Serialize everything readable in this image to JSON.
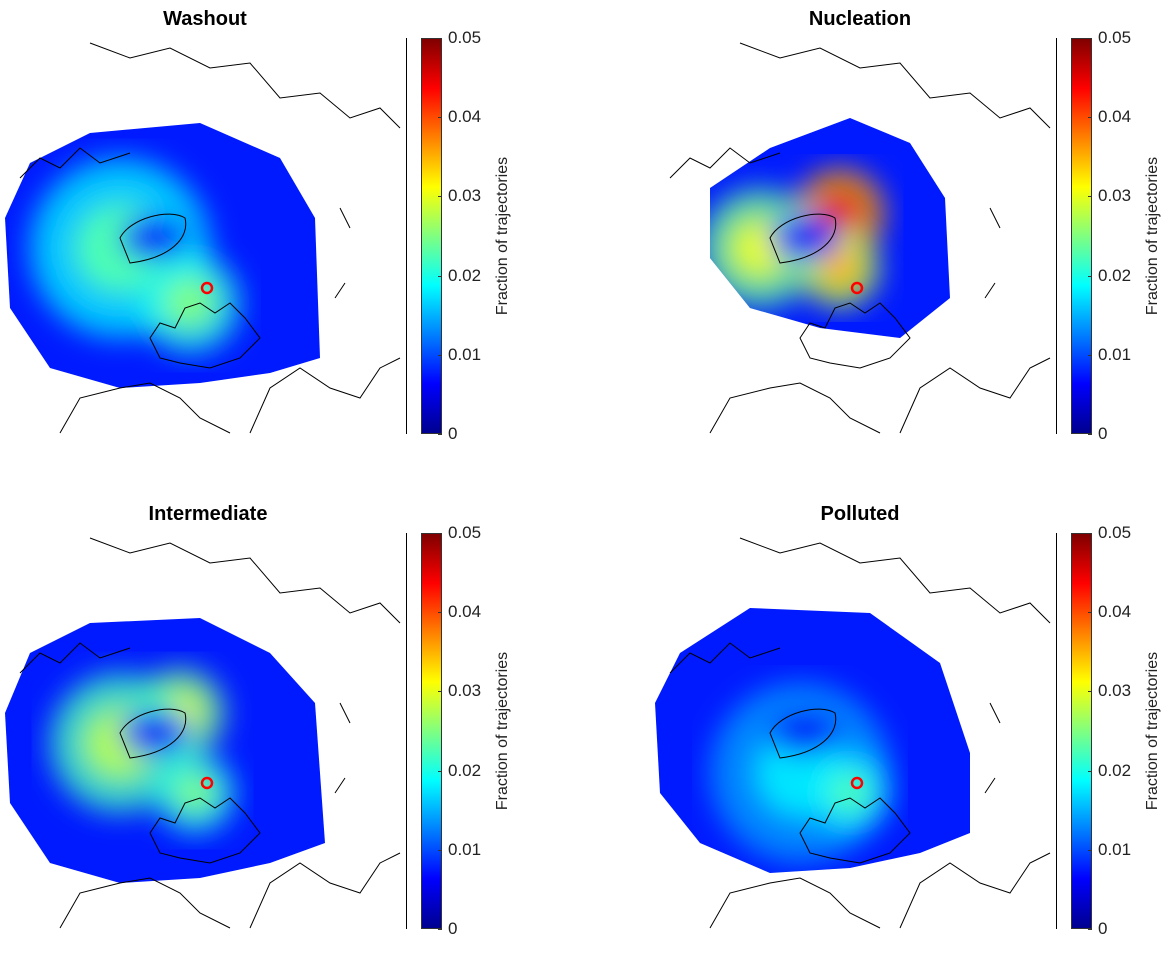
{
  "chart_data": {
    "type": "heatmap",
    "colormap": "jet",
    "colorbar": {
      "label": "Fraction of trajectories",
      "range": [
        0,
        0.05
      ],
      "ticks": [
        "0",
        "0.01",
        "0.02",
        "0.03",
        "0.04",
        "0.05"
      ],
      "tick_values": [
        0,
        0.01,
        0.02,
        0.03,
        0.04,
        0.05
      ]
    },
    "marker_color": "#ff0000",
    "panels": [
      {
        "title": "Washout",
        "peak_fraction": 0.03
      },
      {
        "title": "Nucleation",
        "peak_fraction": 0.045
      },
      {
        "title": "Intermediate",
        "peak_fraction": 0.035
      },
      {
        "title": "Polluted",
        "peak_fraction": 0.025
      }
    ]
  }
}
